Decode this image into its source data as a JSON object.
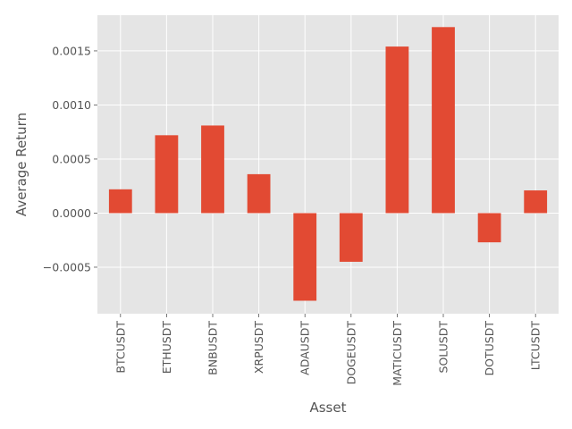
{
  "chart_data": {
    "type": "bar",
    "title": "",
    "xlabel": "Asset",
    "ylabel": "Average Return",
    "categories": [
      "BTCUSDT",
      "ETHUSDT",
      "BNBUSDT",
      "XRPUSDT",
      "ADAUSDT",
      "DOGEUSDT",
      "MATICUSDT",
      "SOLUSDT",
      "DOTUSDT",
      "LTCUSDT"
    ],
    "values": [
      0.00022,
      0.00072,
      0.00081,
      0.00036,
      -0.00081,
      -0.00045,
      0.00154,
      0.00172,
      -0.00027,
      0.00021
    ],
    "ylim": [
      -0.00093,
      0.00183
    ],
    "yticks": [
      -0.0005,
      0.0,
      0.0005,
      0.001,
      0.0015
    ],
    "ytick_labels": [
      "−0.0005",
      "0.0000",
      "0.0005",
      "0.0010",
      "0.0015"
    ],
    "grid": true,
    "style": "ggplot",
    "colors": {
      "bar": "#E24A33",
      "plot_background": "#E5E5E5",
      "grid": "#FFFFFF",
      "text": "#555555"
    }
  }
}
